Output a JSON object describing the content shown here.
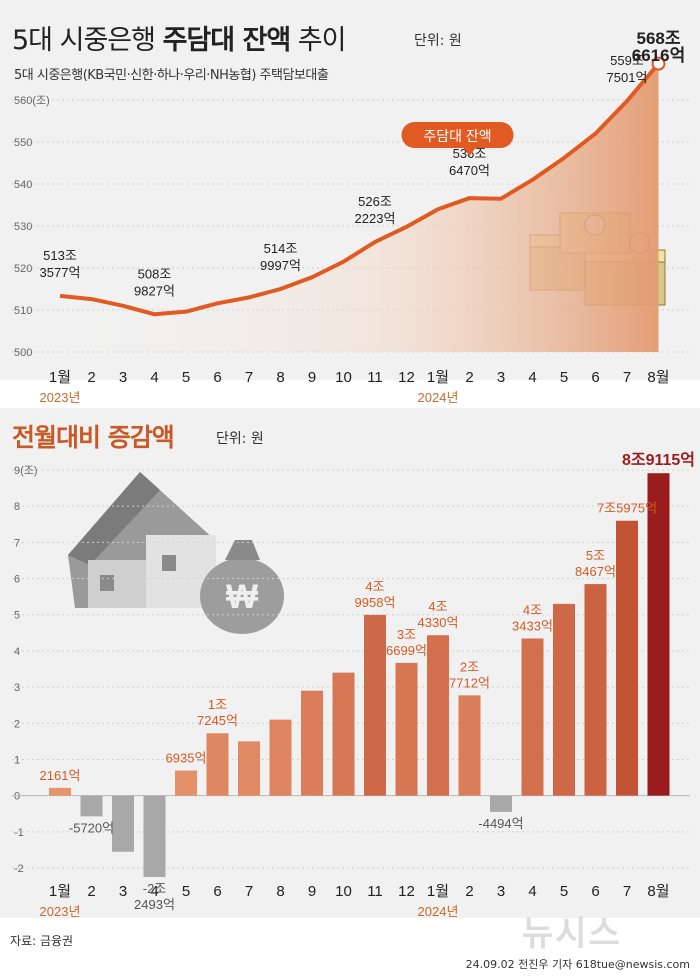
{
  "header": {
    "title_part1": "5대 시중은행",
    "title_part2": "주담대 잔액",
    "title_part3": "추이",
    "unit": "단위: 원",
    "subtitle": "5대 시중은행(KB국민·신한·하나·우리·NH농협) 주택담보대출"
  },
  "section2": {
    "title": "전월대비 증감액",
    "unit": "단위: 원"
  },
  "footer": {
    "source": "자료: 금융권",
    "credit": "24.09.02 전진우 기자 618tue@newsis.com",
    "watermark": "뉴시스"
  },
  "colors": {
    "line": "#e05a22",
    "bar_pos": "#c8643a",
    "bar_neg": "#a8a8a8",
    "highlight": "#9b1c1c",
    "label_orange": "#d45b24"
  },
  "chart_data": [
    {
      "type": "line",
      "title": "5대 시중은행 주담대 잔액 추이",
      "categories": [
        "1월",
        "2",
        "3",
        "4",
        "5",
        "6",
        "7",
        "8",
        "9",
        "10",
        "11",
        "12",
        "1월",
        "2",
        "3",
        "4",
        "5",
        "6",
        "7",
        "8월"
      ],
      "year_labels": [
        "2023년",
        "2024년"
      ],
      "ylim": [
        500,
        560
      ],
      "yticks": [
        "500",
        "510",
        "520",
        "530",
        "540",
        "550",
        "560(조)"
      ],
      "ytick_values": [
        500,
        510,
        520,
        530,
        540,
        550,
        560
      ],
      "values": [
        513.36,
        512.6,
        511.0,
        508.98,
        509.6,
        511.6,
        513.0,
        515.0,
        517.8,
        521.5,
        526.2,
        529.8,
        534.0,
        536.65,
        536.5,
        541.0,
        546.2,
        552.0,
        559.75,
        568.66
      ],
      "callouts": [
        {
          "index": 0,
          "lines": [
            "513조",
            "3577억"
          ]
        },
        {
          "index": 3,
          "lines": [
            "508조",
            "9827억"
          ]
        },
        {
          "index": 7,
          "lines": [
            "514조",
            "9997억"
          ]
        },
        {
          "index": 10,
          "lines": [
            "526조",
            "2223억"
          ]
        },
        {
          "index": 13,
          "lines": [
            "536조",
            "6470억"
          ]
        },
        {
          "index": 18,
          "lines": [
            "559조",
            "7501억"
          ]
        },
        {
          "index": 19,
          "lines": [
            "568조",
            "6616억"
          ]
        }
      ],
      "badge": "주담대 잔액"
    },
    {
      "type": "bar",
      "title": "전월대비 증감액",
      "categories": [
        "1월",
        "2",
        "3",
        "4",
        "5",
        "6",
        "7",
        "8",
        "9",
        "10",
        "11",
        "12",
        "1월",
        "2",
        "3",
        "4",
        "5",
        "6",
        "7",
        "8월"
      ],
      "year_labels": [
        "2023년",
        "2024년"
      ],
      "ylim": [
        -2,
        9
      ],
      "yticks": [
        "-2",
        "-1",
        "0",
        "1",
        "2",
        "3",
        "4",
        "5",
        "6",
        "7",
        "8",
        "9(조)"
      ],
      "ytick_values": [
        -2,
        -1,
        0,
        1,
        2,
        3,
        4,
        5,
        6,
        7,
        8,
        9
      ],
      "values": [
        0.2161,
        -0.572,
        -1.55,
        -2.2493,
        0.6935,
        1.7245,
        1.5,
        2.1,
        2.9,
        3.4,
        4.9958,
        3.6699,
        4.433,
        2.7712,
        -0.4494,
        4.3433,
        5.3,
        5.8467,
        7.5975,
        8.9115
      ],
      "labels": [
        {
          "index": 0,
          "lines": [
            "2161억"
          ]
        },
        {
          "index": 1,
          "lines": [
            "-5720억"
          ]
        },
        {
          "index": 3,
          "lines": [
            "-2조",
            "2493억"
          ]
        },
        {
          "index": 4,
          "lines": [
            "6935억"
          ]
        },
        {
          "index": 5,
          "lines": [
            "1조",
            "7245억"
          ]
        },
        {
          "index": 10,
          "lines": [
            "4조",
            "9958억"
          ]
        },
        {
          "index": 11,
          "lines": [
            "3조",
            "6699억"
          ]
        },
        {
          "index": 12,
          "lines": [
            "4조",
            "4330억"
          ]
        },
        {
          "index": 13,
          "lines": [
            "2조",
            "7712억"
          ]
        },
        {
          "index": 14,
          "lines": [
            "-4494억"
          ]
        },
        {
          "index": 15,
          "lines": [
            "4조",
            "3433억"
          ]
        },
        {
          "index": 17,
          "lines": [
            "5조",
            "8467억"
          ]
        },
        {
          "index": 18,
          "lines": [
            "7조5975억"
          ]
        },
        {
          "index": 19,
          "lines": [
            "8조9115억"
          ]
        }
      ]
    }
  ]
}
